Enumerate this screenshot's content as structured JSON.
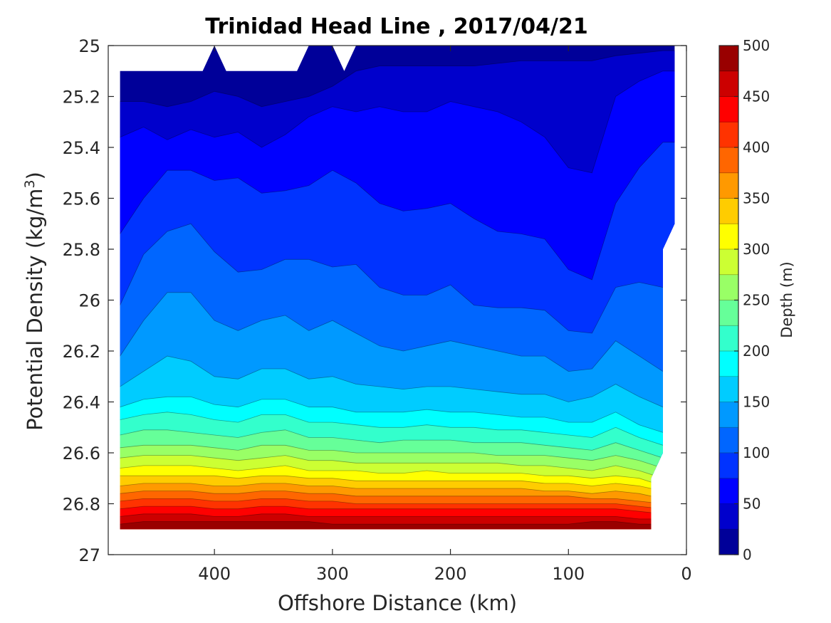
{
  "chart_data": {
    "type": "heatmap",
    "subtype": "filled-contour",
    "title": "Trinidad Head Line , 2017/04/21",
    "xlabel": "Offshore Distance (km)",
    "ylabel_main": "Potential Density (kg/m",
    "ylabel_sup": "3",
    "ylabel_end": ")",
    "xlim": [
      490,
      0
    ],
    "x_reversed": true,
    "ylim": [
      25,
      27
    ],
    "y_reversed": true,
    "xticks": [
      400,
      300,
      200,
      100,
      0
    ],
    "xtick_labels": [
      "400",
      "300",
      "200",
      "100",
      "0"
    ],
    "yticks": [
      25,
      25.2,
      25.4,
      25.6,
      25.8,
      26,
      26.2,
      26.4,
      26.6,
      26.8,
      27
    ],
    "ytick_labels": [
      "25",
      "25.2",
      "25.4",
      "25.6",
      "25.8",
      "26",
      "26.2",
      "26.4",
      "26.6",
      "26.8",
      "27"
    ],
    "colorbar": {
      "label": "Depth (m)",
      "range": [
        0,
        500
      ],
      "levels_step": 25,
      "ticks": [
        0,
        50,
        100,
        150,
        200,
        250,
        300,
        350,
        400,
        450,
        500
      ],
      "tick_labels": [
        "0",
        "50",
        "100",
        "150",
        "200",
        "250",
        "300",
        "350",
        "400",
        "450",
        "500"
      ],
      "colormap": "jet"
    },
    "depth_isolines": {
      "note": "potential density (kg/m^3) at which each depth level is reached, by offshore distance",
      "x": [
        480,
        460,
        440,
        420,
        400,
        380,
        360,
        340,
        320,
        300,
        280,
        260,
        240,
        220,
        200,
        180,
        160,
        140,
        120,
        100,
        80,
        60,
        40,
        20
      ],
      "lines": [
        {
          "depth": 25,
          "values": [
            25.22,
            25.22,
            25.24,
            25.22,
            25.18,
            25.2,
            25.24,
            25.22,
            25.2,
            25.16,
            25.1,
            25.08,
            25.08,
            25.08,
            25.08,
            25.08,
            25.07,
            25.06,
            25.06,
            25.06,
            25.06,
            25.04,
            25.03,
            25.02
          ]
        },
        {
          "depth": 50,
          "values": [
            25.36,
            25.32,
            25.37,
            25.33,
            25.36,
            25.34,
            25.4,
            25.35,
            25.28,
            25.24,
            25.26,
            25.24,
            25.26,
            25.26,
            25.22,
            25.24,
            25.26,
            25.3,
            25.36,
            25.48,
            25.5,
            25.2,
            25.14,
            25.1
          ]
        },
        {
          "depth": 75,
          "values": [
            25.74,
            25.6,
            25.49,
            25.49,
            25.53,
            25.52,
            25.58,
            25.57,
            25.55,
            25.49,
            25.54,
            25.62,
            25.65,
            25.64,
            25.62,
            25.68,
            25.73,
            25.74,
            25.76,
            25.88,
            25.92,
            25.62,
            25.48,
            25.38
          ]
        },
        {
          "depth": 100,
          "values": [
            26.02,
            25.82,
            25.73,
            25.7,
            25.81,
            25.89,
            25.88,
            25.84,
            25.84,
            25.87,
            25.86,
            25.95,
            25.98,
            25.98,
            25.94,
            26.02,
            26.03,
            26.03,
            26.04,
            26.12,
            26.13,
            25.95,
            25.93,
            25.95
          ]
        },
        {
          "depth": 125,
          "values": [
            26.22,
            26.08,
            25.97,
            25.97,
            26.08,
            26.12,
            26.08,
            26.06,
            26.12,
            26.08,
            26.13,
            26.18,
            26.2,
            26.18,
            26.16,
            26.18,
            26.2,
            26.22,
            26.22,
            26.28,
            26.27,
            26.16,
            26.22,
            26.28
          ]
        },
        {
          "depth": 150,
          "values": [
            26.34,
            26.28,
            26.22,
            26.24,
            26.3,
            26.31,
            26.27,
            26.27,
            26.31,
            26.3,
            26.33,
            26.34,
            26.35,
            26.34,
            26.34,
            26.35,
            26.36,
            26.37,
            26.37,
            26.4,
            26.38,
            26.33,
            26.38,
            26.42
          ]
        },
        {
          "depth": 175,
          "values": [
            26.42,
            26.39,
            26.38,
            26.38,
            26.41,
            26.42,
            26.39,
            26.39,
            26.42,
            26.42,
            26.44,
            26.44,
            26.44,
            26.43,
            26.44,
            26.44,
            26.45,
            26.46,
            26.46,
            26.48,
            26.48,
            26.44,
            26.49,
            26.52
          ]
        },
        {
          "depth": 200,
          "values": [
            26.47,
            26.45,
            26.44,
            26.45,
            26.47,
            26.48,
            26.45,
            26.45,
            26.48,
            26.48,
            26.49,
            26.5,
            26.5,
            26.49,
            26.5,
            26.5,
            26.51,
            26.51,
            26.52,
            26.53,
            26.54,
            26.5,
            26.54,
            26.57
          ]
        },
        {
          "depth": 225,
          "values": [
            26.53,
            26.51,
            26.51,
            26.52,
            26.53,
            26.54,
            26.52,
            26.51,
            26.54,
            26.54,
            26.55,
            26.56,
            26.55,
            26.55,
            26.55,
            26.56,
            26.56,
            26.56,
            26.57,
            26.58,
            26.59,
            26.56,
            26.59,
            26.62
          ]
        },
        {
          "depth": 250,
          "values": [
            26.58,
            26.57,
            26.57,
            26.57,
            26.58,
            26.59,
            26.57,
            26.57,
            26.59,
            26.59,
            26.6,
            26.6,
            26.6,
            26.6,
            26.6,
            26.6,
            26.61,
            26.61,
            26.61,
            26.62,
            26.63,
            26.61,
            26.63,
            26.66
          ]
        },
        {
          "depth": 275,
          "values": [
            26.62,
            26.61,
            26.61,
            26.61,
            26.62,
            26.63,
            26.62,
            26.61,
            26.63,
            26.63,
            26.64,
            26.64,
            26.64,
            26.64,
            26.64,
            26.64,
            26.64,
            26.65,
            26.65,
            26.66,
            26.67,
            26.65,
            26.67,
            26.7
          ]
        },
        {
          "depth": 300,
          "values": [
            26.66,
            26.65,
            26.65,
            26.65,
            26.66,
            26.67,
            26.66,
            26.65,
            26.67,
            26.67,
            26.67,
            26.68,
            26.68,
            26.67,
            26.68,
            26.68,
            26.68,
            26.68,
            26.69,
            26.69,
            26.7,
            26.69,
            26.7,
            26.73
          ]
        },
        {
          "depth": 325,
          "values": [
            26.69,
            26.69,
            26.69,
            26.69,
            26.69,
            26.7,
            26.69,
            26.69,
            26.7,
            26.7,
            26.71,
            26.71,
            26.71,
            26.71,
            26.71,
            26.71,
            26.71,
            26.71,
            26.72,
            26.72,
            26.73,
            26.72,
            26.73,
            26.75
          ]
        },
        {
          "depth": 350,
          "values": [
            26.73,
            26.72,
            26.72,
            26.72,
            26.73,
            26.73,
            26.72,
            26.72,
            26.73,
            26.73,
            26.74,
            26.74,
            26.74,
            26.74,
            26.74,
            26.74,
            26.74,
            26.74,
            26.75,
            26.75,
            26.76,
            26.75,
            26.76,
            26.78
          ]
        },
        {
          "depth": 375,
          "values": [
            26.76,
            26.75,
            26.75,
            26.75,
            26.76,
            26.76,
            26.75,
            26.75,
            26.76,
            26.76,
            26.77,
            26.77,
            26.77,
            26.77,
            26.77,
            26.77,
            26.77,
            26.77,
            26.77,
            26.77,
            26.78,
            26.78,
            26.79,
            26.8
          ]
        },
        {
          "depth": 400,
          "values": [
            26.79,
            26.78,
            26.78,
            26.78,
            26.79,
            26.79,
            26.78,
            26.78,
            26.79,
            26.79,
            26.8,
            26.8,
            26.8,
            26.8,
            26.8,
            26.8,
            26.8,
            26.8,
            26.8,
            26.8,
            26.8,
            26.8,
            26.81,
            26.82
          ]
        },
        {
          "depth": 425,
          "values": [
            26.82,
            26.81,
            26.81,
            26.81,
            26.82,
            26.82,
            26.81,
            26.81,
            26.82,
            26.82,
            26.82,
            26.82,
            26.82,
            26.82,
            26.82,
            26.82,
            26.82,
            26.82,
            26.82,
            26.82,
            26.82,
            26.82,
            26.83,
            26.84
          ]
        },
        {
          "depth": 450,
          "values": [
            26.85,
            26.84,
            26.84,
            26.84,
            26.85,
            26.85,
            26.84,
            26.84,
            26.85,
            26.85,
            26.85,
            26.85,
            26.85,
            26.85,
            26.85,
            26.85,
            26.85,
            26.85,
            26.85,
            26.85,
            26.85,
            26.85,
            26.86,
            26.86
          ]
        },
        {
          "depth": 475,
          "values": [
            26.88,
            26.87,
            26.87,
            26.87,
            26.87,
            26.87,
            26.87,
            26.87,
            26.87,
            26.88,
            26.88,
            26.88,
            26.88,
            26.88,
            26.88,
            26.88,
            26.88,
            26.88,
            26.88,
            26.88,
            26.87,
            26.87,
            26.88,
            26.88
          ]
        }
      ]
    },
    "data_domain": {
      "note": "outline of the region containing data, as (distance km, density) pairs",
      "outline": [
        [
          480,
          25.1
        ],
        [
          410,
          25.1
        ],
        [
          400,
          25.0
        ],
        [
          390,
          25.1
        ],
        [
          330,
          25.1
        ],
        [
          320,
          25.0
        ],
        [
          300,
          25.0
        ],
        [
          290,
          25.1
        ],
        [
          280,
          25.0
        ],
        [
          10,
          25.0
        ],
        [
          10,
          25.7
        ],
        [
          20,
          25.8
        ],
        [
          20,
          26.6
        ],
        [
          30,
          26.7
        ],
        [
          30,
          26.9
        ],
        [
          480,
          26.9
        ]
      ]
    }
  }
}
